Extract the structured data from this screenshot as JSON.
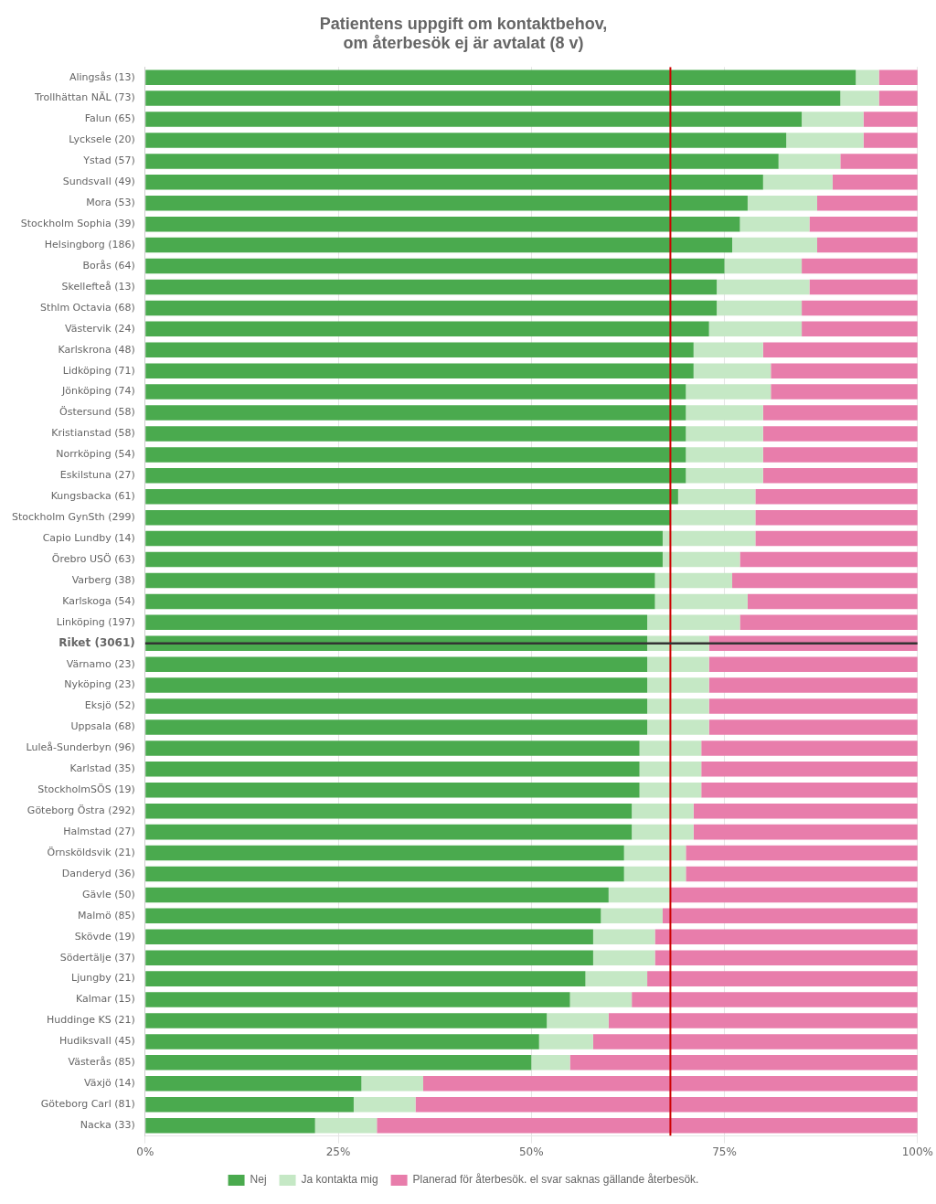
{
  "chart_data": {
    "type": "bar",
    "title": "Patientens uppgift om kontaktbehov,\nom återbesök ej är avtalat (8 v)",
    "orientation": "horizontal",
    "stacked": true,
    "grid": true,
    "legend": "bottom",
    "categories": [
      "Alingsås (13)",
      "Trollhättan NÄL (73)",
      "Falun (65)",
      "Lycksele (20)",
      "Ystad (57)",
      "Sundsvall (49)",
      "Mora (53)",
      "Stockholm Sophia (39)",
      "Helsingborg (186)",
      "Borås (64)",
      "Skellefteå (13)",
      "Sthlm Octavia (68)",
      "Västervik (24)",
      "Karlskrona (48)",
      "Lidköping (71)",
      "Jönköping (74)",
      "Östersund (58)",
      "Kristianstad (58)",
      "Norrköping (54)",
      "Eskilstuna (27)",
      "Kungsbacka (61)",
      "Stockholm GynSth (299)",
      "Capio Lundby (14)",
      "Örebro USÖ (63)",
      "Varberg (38)",
      "Karlskoga (54)",
      "Linköping (197)",
      "Riket (3061)",
      "Värnamo (23)",
      "Nyköping (23)",
      "Eksjö (52)",
      "Uppsala (68)",
      "Luleå-Sunderbyn (96)",
      "Karlstad (35)",
      "StockholmSÖS (19)",
      "Göteborg Östra (292)",
      "Halmstad (27)",
      "Örnsköldsvik (21)",
      "Danderyd (36)",
      "Gävle (50)",
      "Malmö (85)",
      "Skövde (19)",
      "Södertälje (37)",
      "Ljungby (21)",
      "Kalmar (15)",
      "Huddinge KS (21)",
      "Hudiksvall (45)",
      "Västerås (85)",
      "Växjö (14)",
      "Göteborg Carl (81)",
      "Nacka (33)"
    ],
    "series": [
      {
        "name": "Nej",
        "color": "#4aaa4e",
        "values": [
          92,
          90,
          85,
          83,
          82,
          80,
          78,
          77,
          76,
          75,
          74,
          74,
          73,
          71,
          71,
          70,
          70,
          70,
          70,
          70,
          69,
          68,
          67,
          67,
          66,
          66,
          65,
          65,
          65,
          65,
          65,
          65,
          64,
          64,
          64,
          63,
          63,
          62,
          62,
          60,
          59,
          58,
          58,
          57,
          55,
          52,
          51,
          50,
          28,
          27,
          22
        ]
      },
      {
        "name": "Ja kontakta mig",
        "color": "#c5e8c5",
        "values": [
          3,
          5,
          8,
          10,
          8,
          9,
          9,
          9,
          11,
          10,
          12,
          11,
          12,
          9,
          10,
          11,
          10,
          10,
          10,
          10,
          10,
          11,
          12,
          10,
          10,
          12,
          12,
          8,
          8,
          8,
          8,
          8,
          8,
          8,
          8,
          8,
          8,
          8,
          8,
          8,
          8,
          8,
          8,
          8,
          8,
          8,
          7,
          5,
          8,
          8,
          8
        ]
      },
      {
        "name": "Planerad för återbesök. el svar saknas gällande återbesök.",
        "color": "#e87dab",
        "values": [
          5,
          5,
          7,
          7,
          10,
          11,
          13,
          14,
          13,
          15,
          14,
          15,
          15,
          20,
          19,
          19,
          20,
          20,
          20,
          20,
          21,
          21,
          21,
          23,
          24,
          22,
          23,
          27,
          27,
          27,
          27,
          27,
          28,
          28,
          28,
          29,
          29,
          30,
          30,
          32,
          33,
          34,
          34,
          35,
          37,
          40,
          42,
          45,
          64,
          65,
          70
        ]
      }
    ],
    "xlim": [
      0,
      100
    ],
    "xticks": [
      {
        "value": 0,
        "label": "0%"
      },
      {
        "value": 25,
        "label": "25%"
      },
      {
        "value": 50,
        "label": "50%"
      },
      {
        "value": 75,
        "label": "75%"
      },
      {
        "value": 100,
        "label": "100%"
      }
    ],
    "ref_line": {
      "value": 68,
      "color": "#cc0000"
    },
    "marked_category": {
      "label": "Riket (3061)",
      "color": "#333333"
    }
  }
}
